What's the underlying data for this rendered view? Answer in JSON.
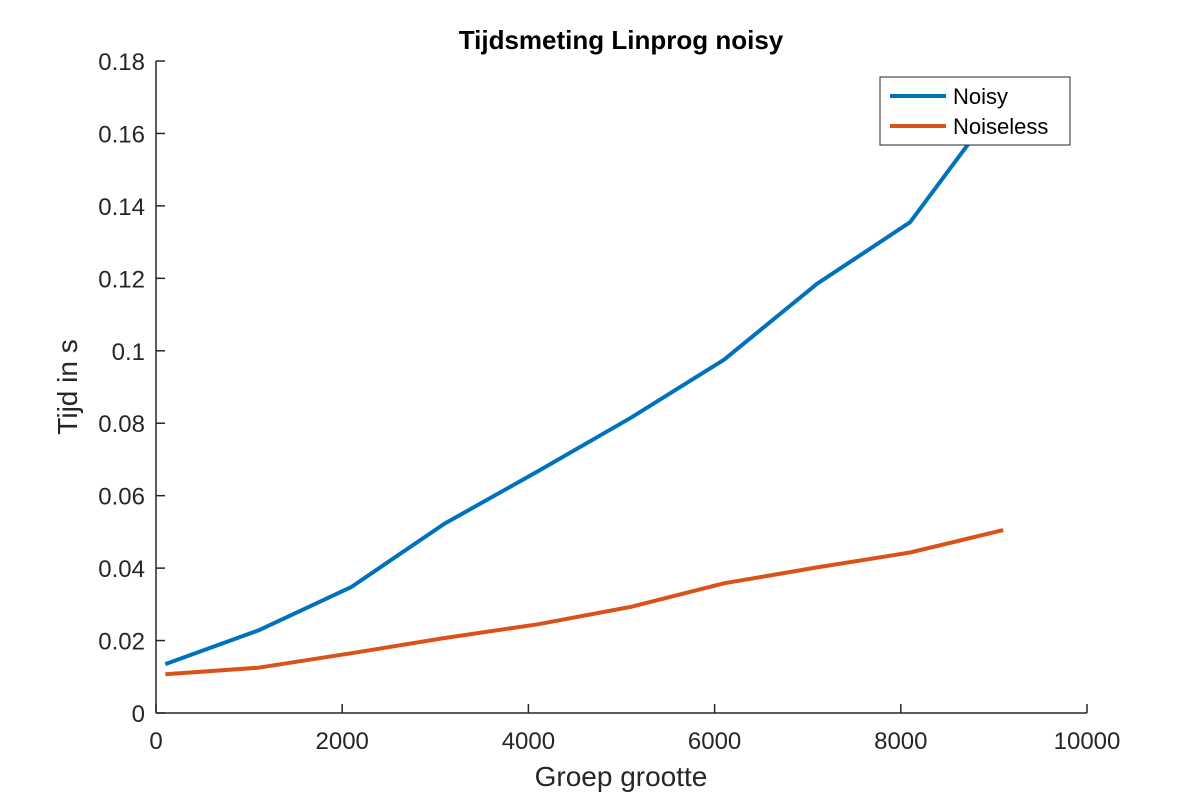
{
  "chart_data": {
    "type": "line",
    "title": "Tijdsmeting Linprog noisy",
    "xlabel": "Groep grootte",
    "ylabel": "Tijd in s",
    "xlim": [
      0,
      10000
    ],
    "ylim": [
      0,
      0.18
    ],
    "x_ticks": [
      0,
      2000,
      4000,
      6000,
      8000,
      10000
    ],
    "x_tick_labels": [
      "0",
      "2000",
      "4000",
      "6000",
      "8000",
      "10000"
    ],
    "y_ticks": [
      0,
      0.02,
      0.04,
      0.06,
      0.08,
      0.1,
      0.12,
      0.14,
      0.16,
      0.18
    ],
    "y_tick_labels": [
      "0",
      "0.02",
      "0.04",
      "0.06",
      "0.08",
      "0.1",
      "0.12",
      "0.14",
      "0.16",
      "0.18"
    ],
    "grid": false,
    "legend_position": "top-right",
    "series": [
      {
        "name": "Noisy",
        "color": "#0072BD",
        "x": [
          100,
          1100,
          2100,
          3100,
          4100,
          5100,
          6100,
          7100,
          8100,
          9100
        ],
        "y": [
          0.0135,
          0.0228,
          0.0348,
          0.0523,
          0.0667,
          0.0815,
          0.0975,
          0.1185,
          0.1355,
          0.17
        ]
      },
      {
        "name": "Noiseless",
        "color": "#D95319",
        "x": [
          100,
          1100,
          2100,
          3100,
          4100,
          5100,
          6100,
          7100,
          8100,
          9100
        ],
        "y": [
          0.0107,
          0.0125,
          0.0165,
          0.0207,
          0.0245,
          0.0293,
          0.0358,
          0.0402,
          0.0443,
          0.0505
        ]
      }
    ]
  }
}
